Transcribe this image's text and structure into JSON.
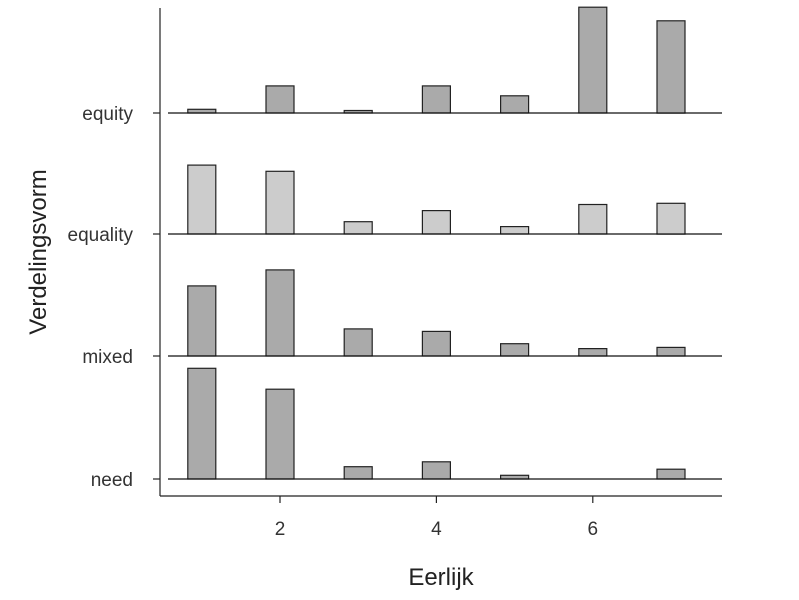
{
  "chart_data": {
    "type": "ridgeline-histogram",
    "xlabel": "Eerlijk",
    "ylabel": "Verdelingsvorm",
    "x_ticks": [
      2,
      4,
      6
    ],
    "xlim": [
      0.6,
      7.7
    ],
    "x": [
      1,
      2,
      3,
      4,
      5,
      6,
      7
    ],
    "groups": [
      "need",
      "mixed",
      "equality",
      "equity"
    ],
    "series": [
      {
        "name": "need",
        "fill": "#aaaaaa",
        "values": [
          0.9,
          0.73,
          0.1,
          0.14,
          0.03,
          0.0,
          0.08
        ]
      },
      {
        "name": "mixed",
        "fill": "#aaaaaa",
        "values": [
          0.57,
          0.7,
          0.22,
          0.2,
          0.1,
          0.06,
          0.07
        ]
      },
      {
        "name": "equality",
        "fill": "#cccccc",
        "values": [
          0.56,
          0.51,
          0.1,
          0.19,
          0.06,
          0.24,
          0.25
        ]
      },
      {
        "name": "equity",
        "fill": "#aaaaaa",
        "values": [
          0.03,
          0.22,
          0.02,
          0.22,
          0.14,
          0.86,
          0.75
        ]
      }
    ]
  }
}
